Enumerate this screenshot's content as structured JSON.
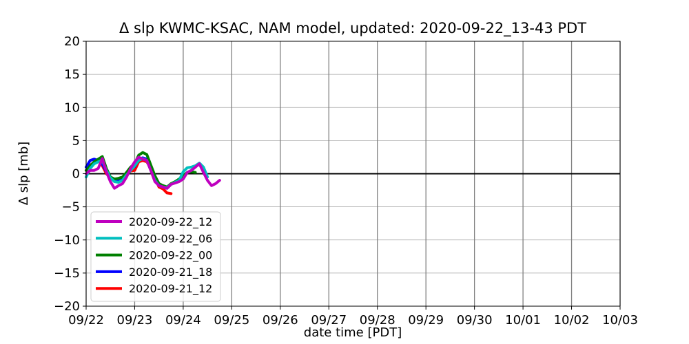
{
  "chart_data": {
    "type": "line",
    "title": "Δ slp KWMC-KSAC, NAM model, updated: 2020-09-22_13-43 PDT",
    "xlabel": "date time [PDT]",
    "ylabel": "Δ slp [mb]",
    "xlim": [
      "2020-09-22 00:00",
      "2020-10-03 00:00"
    ],
    "ylim": [
      -20,
      20
    ],
    "x_tick_labels": [
      "09/22",
      "09/23",
      "09/24",
      "09/25",
      "09/26",
      "09/27",
      "09/28",
      "09/29",
      "09/30",
      "10/01",
      "10/02",
      "10/03"
    ],
    "y_tick_labels": [
      "20",
      "15",
      "10",
      "5",
      "0",
      "−5",
      "−10",
      "−15",
      "−20"
    ],
    "y_ticks": [
      20,
      15,
      10,
      5,
      0,
      -5,
      -10,
      -15,
      -20
    ],
    "grid": true,
    "zero_line": true,
    "legend_position": "lower-left",
    "series": [
      {
        "name": "2020-09-21_12",
        "color": "#ff0000",
        "x": [
          "09/22 00:00",
          "09/22 02:00",
          "09/22 04:00",
          "09/22 06:00",
          "09/22 08:00",
          "09/22 10:00",
          "09/22 12:00",
          "09/22 14:00",
          "09/22 16:00",
          "09/22 18:00",
          "09/22 20:00",
          "09/22 22:00",
          "09/23 00:00",
          "09/23 02:00",
          "09/23 04:00",
          "09/23 06:00",
          "09/23 08:00",
          "09/23 10:00",
          "09/23 12:00",
          "09/23 14:00",
          "09/23 16:00",
          "09/23 18:00"
        ],
        "y": [
          0.5,
          1.3,
          1.7,
          2.0,
          1.2,
          0.0,
          -0.6,
          -1.0,
          -0.9,
          -0.7,
          0.0,
          0.4,
          0.5,
          1.8,
          2.0,
          1.8,
          0.8,
          -0.6,
          -2.0,
          -2.3,
          -2.9,
          -3.0
        ]
      },
      {
        "name": "2020-09-21_18",
        "color": "#0000ff",
        "x": [
          "09/22 00:00",
          "09/22 02:00",
          "09/22 04:00",
          "09/22 06:00",
          "09/22 08:00",
          "09/22 10:00",
          "09/22 12:00",
          "09/22 14:00",
          "09/22 16:00",
          "09/22 18:00",
          "09/22 20:00",
          "09/22 22:00",
          "09/23 00:00",
          "09/23 02:00",
          "09/23 04:00",
          "09/23 06:00",
          "09/23 08:00",
          "09/23 10:00",
          "09/23 12:00",
          "09/23 14:00",
          "09/23 16:00",
          "09/23 18:00",
          "09/23 20:00",
          "09/23 22:00",
          "09/24 00:00"
        ],
        "y": [
          1.0,
          2.0,
          2.2,
          2.0,
          1.5,
          0.3,
          -0.5,
          -1.0,
          -1.1,
          -0.8,
          0.0,
          0.7,
          1.1,
          2.2,
          2.4,
          2.2,
          1.0,
          -0.5,
          -1.5,
          -2.0,
          -2.2,
          -1.6,
          -1.3,
          -0.9,
          -0.3
        ]
      },
      {
        "name": "2020-09-22_00",
        "color": "#008000",
        "x": [
          "09/22 00:00",
          "09/22 02:00",
          "09/22 04:00",
          "09/22 06:00",
          "09/22 08:00",
          "09/22 10:00",
          "09/22 12:00",
          "09/22 14:00",
          "09/22 16:00",
          "09/22 18:00",
          "09/22 20:00",
          "09/22 22:00",
          "09/23 00:00",
          "09/23 02:00",
          "09/23 04:00",
          "09/23 06:00",
          "09/23 08:00",
          "09/23 10:00",
          "09/23 12:00",
          "09/23 14:00",
          "09/23 16:00",
          "09/23 18:00",
          "09/23 20:00",
          "09/23 22:00",
          "09/24 00:00",
          "09/24 02:00",
          "09/24 04:00",
          "09/24 06:00"
        ],
        "y": [
          0.5,
          1.2,
          1.8,
          2.2,
          2.6,
          0.8,
          -0.5,
          -0.8,
          -0.7,
          -0.5,
          0.2,
          1.0,
          1.5,
          2.8,
          3.2,
          2.9,
          1.3,
          -0.3,
          -1.5,
          -1.8,
          -2.0,
          -1.5,
          -1.2,
          -0.8,
          -0.3,
          0.2,
          0.3,
          0.2
        ]
      },
      {
        "name": "2020-09-22_06",
        "color": "#00bfbf",
        "x": [
          "09/22 00:00",
          "09/22 02:00",
          "09/22 04:00",
          "09/22 06:00",
          "09/22 08:00",
          "09/22 10:00",
          "09/22 12:00",
          "09/22 14:00",
          "09/22 16:00",
          "09/22 18:00",
          "09/22 20:00",
          "09/22 22:00",
          "09/23 00:00",
          "09/23 02:00",
          "09/23 04:00",
          "09/23 06:00",
          "09/23 08:00",
          "09/23 10:00",
          "09/23 12:00",
          "09/23 14:00",
          "09/23 16:00",
          "09/23 18:00",
          "09/23 20:00",
          "09/23 22:00",
          "09/24 00:00",
          "09/24 02:00",
          "09/24 04:00",
          "09/24 06:00",
          "09/24 08:00",
          "09/24 10:00",
          "09/24 12:00"
        ],
        "y": [
          -0.5,
          0.8,
          1.5,
          1.8,
          2.0,
          0.5,
          -0.6,
          -1.2,
          -1.3,
          -1.0,
          -0.2,
          0.5,
          1.2,
          2.0,
          2.3,
          2.0,
          0.5,
          -1.0,
          -1.8,
          -2.0,
          -2.1,
          -1.6,
          -1.3,
          -1.0,
          0.3,
          0.9,
          1.0,
          1.2,
          1.6,
          1.0,
          -0.5
        ]
      },
      {
        "name": "2020-09-22_12",
        "color": "#bf00bf",
        "x": [
          "09/22 00:00",
          "09/22 02:00",
          "09/22 04:00",
          "09/22 06:00",
          "09/22 08:00",
          "09/22 10:00",
          "09/22 12:00",
          "09/22 14:00",
          "09/22 16:00",
          "09/22 18:00",
          "09/22 20:00",
          "09/22 22:00",
          "09/23 00:00",
          "09/23 02:00",
          "09/23 04:00",
          "09/23 06:00",
          "09/23 08:00",
          "09/23 10:00",
          "09/23 12:00",
          "09/23 14:00",
          "09/23 16:00",
          "09/23 18:00",
          "09/23 20:00",
          "09/23 22:00",
          "09/24 00:00",
          "09/24 02:00",
          "09/24 04:00",
          "09/24 06:00",
          "09/24 08:00",
          "09/24 10:00",
          "09/24 12:00",
          "09/24 14:00",
          "09/24 16:00",
          "09/24 18:00"
        ],
        "y": [
          0.0,
          0.5,
          0.5,
          0.8,
          2.3,
          0.3,
          -1.2,
          -2.2,
          -1.8,
          -1.5,
          -0.5,
          0.8,
          1.8,
          2.5,
          2.2,
          2.0,
          0.5,
          -1.2,
          -1.8,
          -2.0,
          -2.2,
          -1.6,
          -1.4,
          -1.2,
          -0.8,
          0.2,
          0.5,
          1.0,
          1.5,
          0.2,
          -1.0,
          -1.8,
          -1.5,
          -1.0
        ]
      }
    ],
    "legend": [
      "2020-09-22_12",
      "2020-09-22_06",
      "2020-09-22_00",
      "2020-09-21_18",
      "2020-09-21_12"
    ]
  }
}
